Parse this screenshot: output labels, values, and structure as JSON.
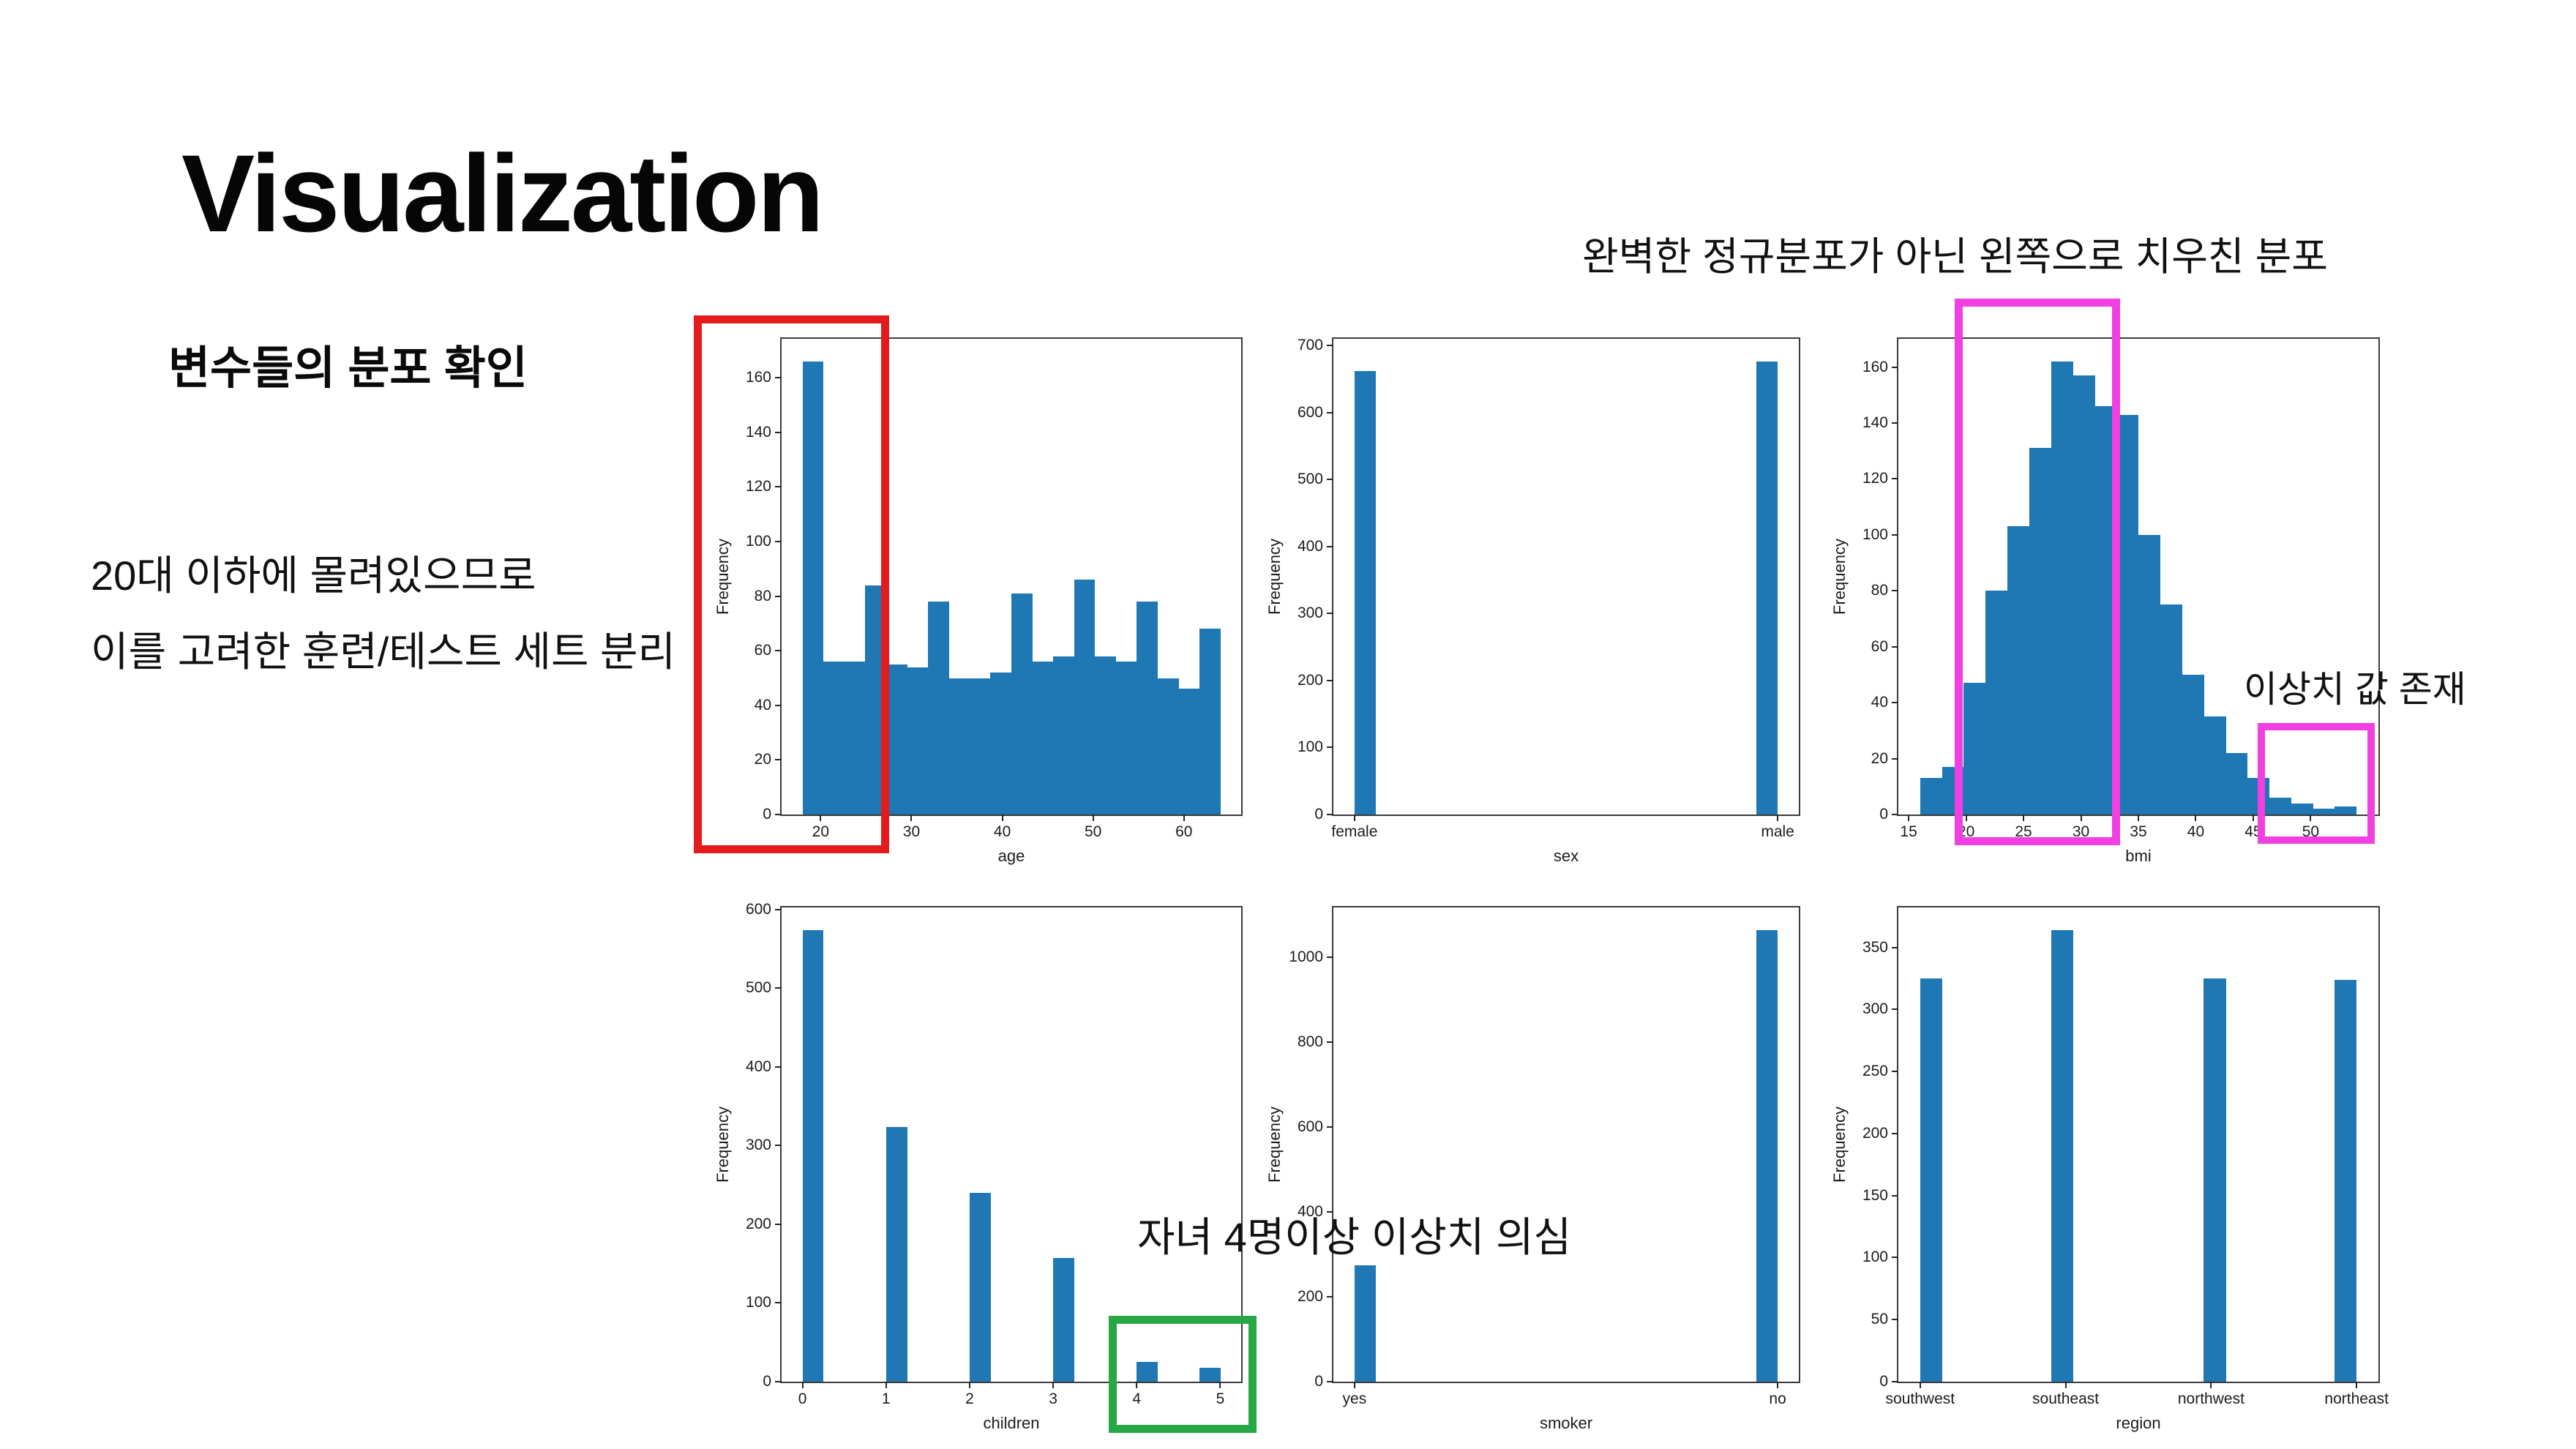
{
  "slide": {
    "title": "Visualization",
    "subtitle": "변수들의 분포 확인",
    "notes": {
      "red_line1": "20대 이하에 몰려있으므로",
      "red_line2": "이를 고려한 훈련/테스트 세트 분리",
      "magenta_top": "완벽한 정규분포가 아닌 왼쪽으로 치우친 분포",
      "magenta_right": "이상치 값 존재",
      "green": "자녀 4명이상 이상치 의심"
    },
    "colors": {
      "bar": "#1f77b4",
      "red_accent": "#e41b1d",
      "magenta_accent": "#f13fe2",
      "green_accent": "#28a745",
      "axis": "#262626"
    }
  },
  "chart_data": [
    {
      "id": "age",
      "type": "bar",
      "subtype": "histogram",
      "title": "",
      "xlabel": "age",
      "ylabel": "Frequency",
      "bin_start": 18,
      "bin_width": 2.3,
      "values": [
        166,
        56,
        56,
        84,
        55,
        54,
        78,
        50,
        50,
        52,
        81,
        56,
        58,
        86,
        58,
        56,
        78,
        50,
        46,
        68
      ],
      "xlim": [
        15.7,
        66.3
      ],
      "ylim": [
        0,
        174.3
      ],
      "xticks": {
        "positions": [
          20,
          30,
          40,
          50,
          60
        ],
        "labels": [
          "20",
          "30",
          "40",
          "50",
          "60"
        ]
      },
      "yticks": [
        0,
        20,
        40,
        60,
        80,
        100,
        120,
        140,
        160
      ],
      "grid": false,
      "legend": "none"
    },
    {
      "id": "sex",
      "type": "bar",
      "subtype": "categorical-histogram",
      "title": "",
      "xlabel": "sex",
      "ylabel": "Frequency",
      "categories": [
        "female",
        "male"
      ],
      "values": [
        662,
        676
      ],
      "positions": [
        0,
        0.95
      ],
      "bar_width": 0.05,
      "xlim": [
        -0.05,
        1.05
      ],
      "ylim": [
        0,
        709.8
      ],
      "xticks": {
        "positions": [
          0,
          1
        ],
        "labels": [
          "female",
          "male"
        ]
      },
      "yticks": [
        0,
        100,
        200,
        300,
        400,
        500,
        600,
        700
      ],
      "grid": false,
      "legend": "none"
    },
    {
      "id": "bmi",
      "type": "bar",
      "subtype": "histogram",
      "title": "",
      "xlabel": "bmi",
      "ylabel": "Frequency",
      "bin_start": 16,
      "bin_width": 1.9,
      "values": [
        13,
        17,
        47,
        80,
        103,
        131,
        162,
        157,
        146,
        143,
        100,
        75,
        50,
        35,
        22,
        13,
        6,
        4,
        2,
        3
      ],
      "xlim": [
        14.1,
        55.9
      ],
      "ylim": [
        0,
        170.1
      ],
      "xticks": {
        "positions": [
          15,
          20,
          25,
          30,
          35,
          40,
          45,
          50
        ],
        "labels": [
          "15",
          "20",
          "25",
          "30",
          "35",
          "40",
          "45",
          "50"
        ]
      },
      "yticks": [
        0,
        20,
        40,
        60,
        80,
        100,
        120,
        140,
        160
      ],
      "grid": false,
      "legend": "none"
    },
    {
      "id": "children",
      "type": "bar",
      "subtype": "categorical-histogram",
      "title": "",
      "xlabel": "children",
      "ylabel": "Frequency",
      "categories": [
        "0",
        "1",
        "2",
        "3",
        "4",
        "5"
      ],
      "values": [
        574,
        324,
        240,
        157,
        25,
        18
      ],
      "positions": [
        0,
        1,
        2,
        3,
        4,
        4.75
      ],
      "bar_width": 0.25,
      "xlim": [
        -0.25,
        5.25
      ],
      "ylim": [
        0,
        602.7
      ],
      "xticks": {
        "positions": [
          0,
          1,
          2,
          3,
          4,
          5
        ],
        "labels": [
          "0",
          "1",
          "2",
          "3",
          "4",
          "5"
        ]
      },
      "yticks": [
        0,
        100,
        200,
        300,
        400,
        500,
        600
      ],
      "grid": false,
      "legend": "none"
    },
    {
      "id": "smoker",
      "type": "bar",
      "subtype": "categorical-histogram",
      "title": "",
      "xlabel": "smoker",
      "ylabel": "Frequency",
      "categories": [
        "yes",
        "no"
      ],
      "values": [
        274,
        1064
      ],
      "positions": [
        0,
        0.95
      ],
      "bar_width": 0.05,
      "xlim": [
        -0.05,
        1.05
      ],
      "ylim": [
        0,
        1117.2
      ],
      "xticks": {
        "positions": [
          0,
          1
        ],
        "labels": [
          "yes",
          "no"
        ]
      },
      "yticks": [
        0,
        200,
        400,
        600,
        800,
        1000
      ],
      "grid": false,
      "legend": "none"
    },
    {
      "id": "region",
      "type": "bar",
      "subtype": "categorical-histogram",
      "title": "",
      "xlabel": "region",
      "ylabel": "Frequency",
      "categories": [
        "southwest",
        "southeast",
        "northwest",
        "northeast"
      ],
      "values": [
        325,
        364,
        325,
        324
      ],
      "positions": [
        0,
        0.9,
        1.95,
        2.85
      ],
      "bar_width": 0.15,
      "xlim": [
        -0.15,
        3.15
      ],
      "ylim": [
        0,
        382.2
      ],
      "xticks": {
        "positions": [
          0,
          1,
          2,
          3
        ],
        "labels": [
          "southwest",
          "southeast",
          "northwest",
          "northeast"
        ]
      },
      "yticks": [
        0,
        50,
        100,
        150,
        200,
        250,
        300,
        350
      ],
      "grid": false,
      "legend": "none"
    }
  ]
}
